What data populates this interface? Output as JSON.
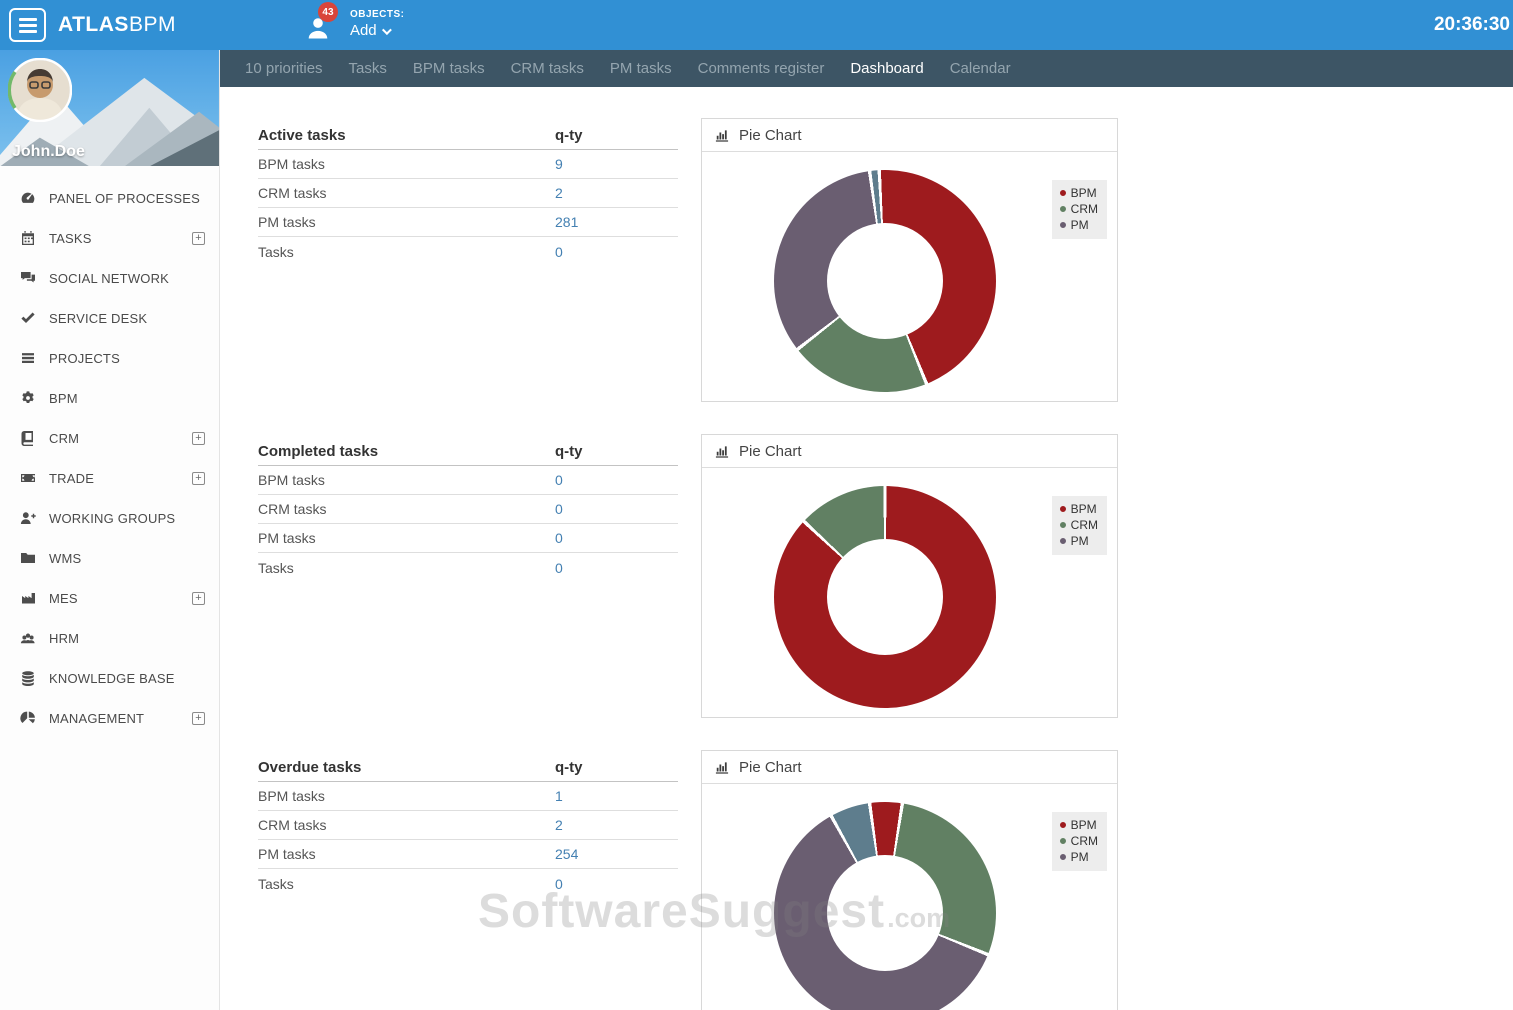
{
  "topbar": {
    "brand_bold": "ATLAS",
    "brand_light": "BPM",
    "notifications_badge": "43",
    "objects_label": "OBJECTS:",
    "add_label": "Add",
    "clock": "20:36:30"
  },
  "user": {
    "name": "John.Doe"
  },
  "tabs": [
    {
      "label": "10 priorities",
      "active": false
    },
    {
      "label": "Tasks",
      "active": false
    },
    {
      "label": "BPM tasks",
      "active": false
    },
    {
      "label": "CRM tasks",
      "active": false
    },
    {
      "label": "PM tasks",
      "active": false
    },
    {
      "label": "Comments register",
      "active": false
    },
    {
      "label": "Dashboard",
      "active": true
    },
    {
      "label": "Calendar",
      "active": false
    }
  ],
  "sidebar": {
    "items": [
      {
        "label": "PANEL OF PROCESSES",
        "icon": "gauge-icon",
        "expandable": false
      },
      {
        "label": "TASKS",
        "icon": "calendar-icon",
        "expandable": true
      },
      {
        "label": "SOCIAL NETWORK",
        "icon": "comments-icon",
        "expandable": false
      },
      {
        "label": "SERVICE DESK",
        "icon": "check-icon",
        "expandable": false
      },
      {
        "label": "PROJECTS",
        "icon": "list-icon",
        "expandable": false
      },
      {
        "label": "BPM",
        "icon": "gears-icon",
        "expandable": false
      },
      {
        "label": "CRM",
        "icon": "book-icon",
        "expandable": true
      },
      {
        "label": "TRADE",
        "icon": "money-icon",
        "expandable": true
      },
      {
        "label": "WORKING GROUPS",
        "icon": "user-plus-icon",
        "expandable": false
      },
      {
        "label": "WMS",
        "icon": "folder-icon",
        "expandable": false
      },
      {
        "label": "MES",
        "icon": "factory-icon",
        "expandable": true
      },
      {
        "label": "HRM",
        "icon": "users-icon",
        "expandable": false
      },
      {
        "label": "KNOWLEDGE BASE",
        "icon": "database-icon",
        "expandable": false
      },
      {
        "label": "MANAGEMENT",
        "icon": "pie-icon",
        "expandable": true
      }
    ]
  },
  "panel_title": "Pie Chart",
  "sections": [
    {
      "title": "Active tasks",
      "qty_header": "q-ty",
      "rows": [
        {
          "label": "BPM tasks",
          "value": "9"
        },
        {
          "label": "CRM tasks",
          "value": "2"
        },
        {
          "label": "PM tasks",
          "value": "281"
        },
        {
          "label": "Tasks",
          "value": "0"
        }
      ]
    },
    {
      "title": "Completed tasks",
      "qty_header": "q-ty",
      "rows": [
        {
          "label": "BPM tasks",
          "value": "0"
        },
        {
          "label": "CRM tasks",
          "value": "0"
        },
        {
          "label": "PM tasks",
          "value": "0"
        },
        {
          "label": "Tasks",
          "value": "0"
        }
      ]
    },
    {
      "title": "Overdue tasks",
      "qty_header": "q-ty",
      "rows": [
        {
          "label": "BPM tasks",
          "value": "1"
        },
        {
          "label": "CRM tasks",
          "value": "2"
        },
        {
          "label": "PM tasks",
          "value": "254"
        },
        {
          "label": "Tasks",
          "value": "0"
        }
      ]
    }
  ],
  "chart_data": [
    {
      "type": "pie",
      "title": "Pie Chart (Active tasks)",
      "legend_position": "right",
      "legend": [
        {
          "label": "BPM",
          "color": "#9e1b1e"
        },
        {
          "label": "CRM",
          "color": "#618063"
        },
        {
          "label": "PM",
          "color": "#6a5e71"
        }
      ],
      "segments": [
        {
          "label": "BPM",
          "color": "#9e1b1e",
          "from_deg": 0,
          "to_deg": 158,
          "pct": 43.9
        },
        {
          "label": "CRM",
          "color": "#618063",
          "from_deg": 158,
          "to_deg": 232,
          "pct": 20.6
        },
        {
          "label": "PM",
          "color": "#6a5e71",
          "from_deg": 232,
          "to_deg": 352,
          "pct": 33.3
        },
        {
          "label": "other",
          "color": "#5e7d8d",
          "from_deg": 352,
          "to_deg": 357,
          "pct": 1.4
        },
        {
          "label": "BPM",
          "color": "#9e1b1e",
          "from_deg": 357,
          "to_deg": 360,
          "pct": 0.8
        }
      ]
    },
    {
      "type": "pie",
      "title": "Pie Chart (Completed tasks)",
      "legend_position": "right",
      "legend": [
        {
          "label": "BPM",
          "color": "#9e1b1e"
        },
        {
          "label": "CRM",
          "color": "#618063"
        },
        {
          "label": "PM",
          "color": "#6a5e71"
        }
      ],
      "segments": [
        {
          "label": "BPM",
          "color": "#9e1b1e",
          "from_deg": 0,
          "to_deg": 313,
          "pct": 86.9
        },
        {
          "label": "CRM",
          "color": "#618063",
          "from_deg": 313,
          "to_deg": 360,
          "pct": 13.1
        }
      ]
    },
    {
      "type": "pie",
      "title": "Pie Chart (Overdue tasks)",
      "legend_position": "right",
      "legend": [
        {
          "label": "BPM",
          "color": "#9e1b1e"
        },
        {
          "label": "CRM",
          "color": "#618063"
        },
        {
          "label": "PM",
          "color": "#6a5e71"
        }
      ],
      "segments": [
        {
          "label": "BPM",
          "color": "#9e1b1e",
          "from_deg": 0,
          "to_deg": 9,
          "pct": 2.5
        },
        {
          "label": "CRM",
          "color": "#618063",
          "from_deg": 9,
          "to_deg": 112,
          "pct": 28.6
        },
        {
          "label": "PM",
          "color": "#6a5e71",
          "from_deg": 112,
          "to_deg": 331,
          "pct": 60.8
        },
        {
          "label": "other",
          "color": "#5e7d8d",
          "from_deg": 331,
          "to_deg": 352,
          "pct": 5.8
        },
        {
          "label": "BPM",
          "color": "#9e1b1e",
          "from_deg": 352,
          "to_deg": 360,
          "pct": 2.2
        }
      ]
    }
  ],
  "watermark": {
    "main": "SoftwareSuggest",
    "suffix": ".com"
  }
}
